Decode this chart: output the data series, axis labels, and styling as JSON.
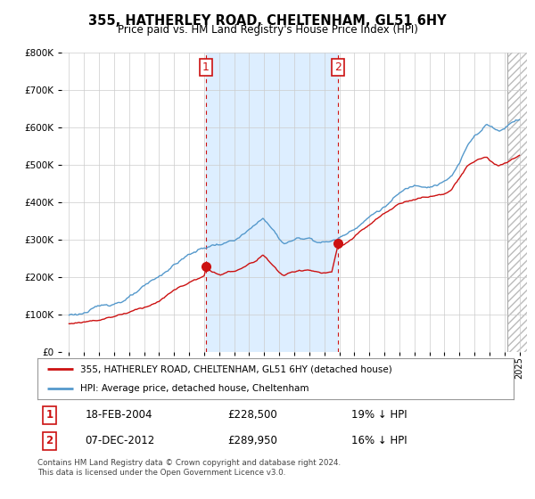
{
  "title": "355, HATHERLEY ROAD, CHELTENHAM, GL51 6HY",
  "subtitle": "Price paid vs. HM Land Registry's House Price Index (HPI)",
  "hpi_label": "HPI: Average price, detached house, Cheltenham",
  "property_label": "355, HATHERLEY ROAD, CHELTENHAM, GL51 6HY (detached house)",
  "footnote": "Contains HM Land Registry data © Crown copyright and database right 2024.\nThis data is licensed under the Open Government Licence v3.0.",
  "sale1": {
    "date": "18-FEB-2004",
    "price": 228500,
    "pct": "19% ↓ HPI"
  },
  "sale2": {
    "date": "07-DEC-2012",
    "price": 289950,
    "pct": "16% ↓ HPI"
  },
  "sale1_x": 2004.12,
  "sale2_x": 2012.92,
  "ylim": [
    0,
    800000
  ],
  "xlim_start": 1994.5,
  "xlim_end": 2025.5,
  "hpi_color": "#5599cc",
  "price_color": "#cc1111",
  "background_color": "#ffffff",
  "grid_color": "#cccccc",
  "highlight_color": "#ddeeff",
  "hatch_start": 2024.17
}
